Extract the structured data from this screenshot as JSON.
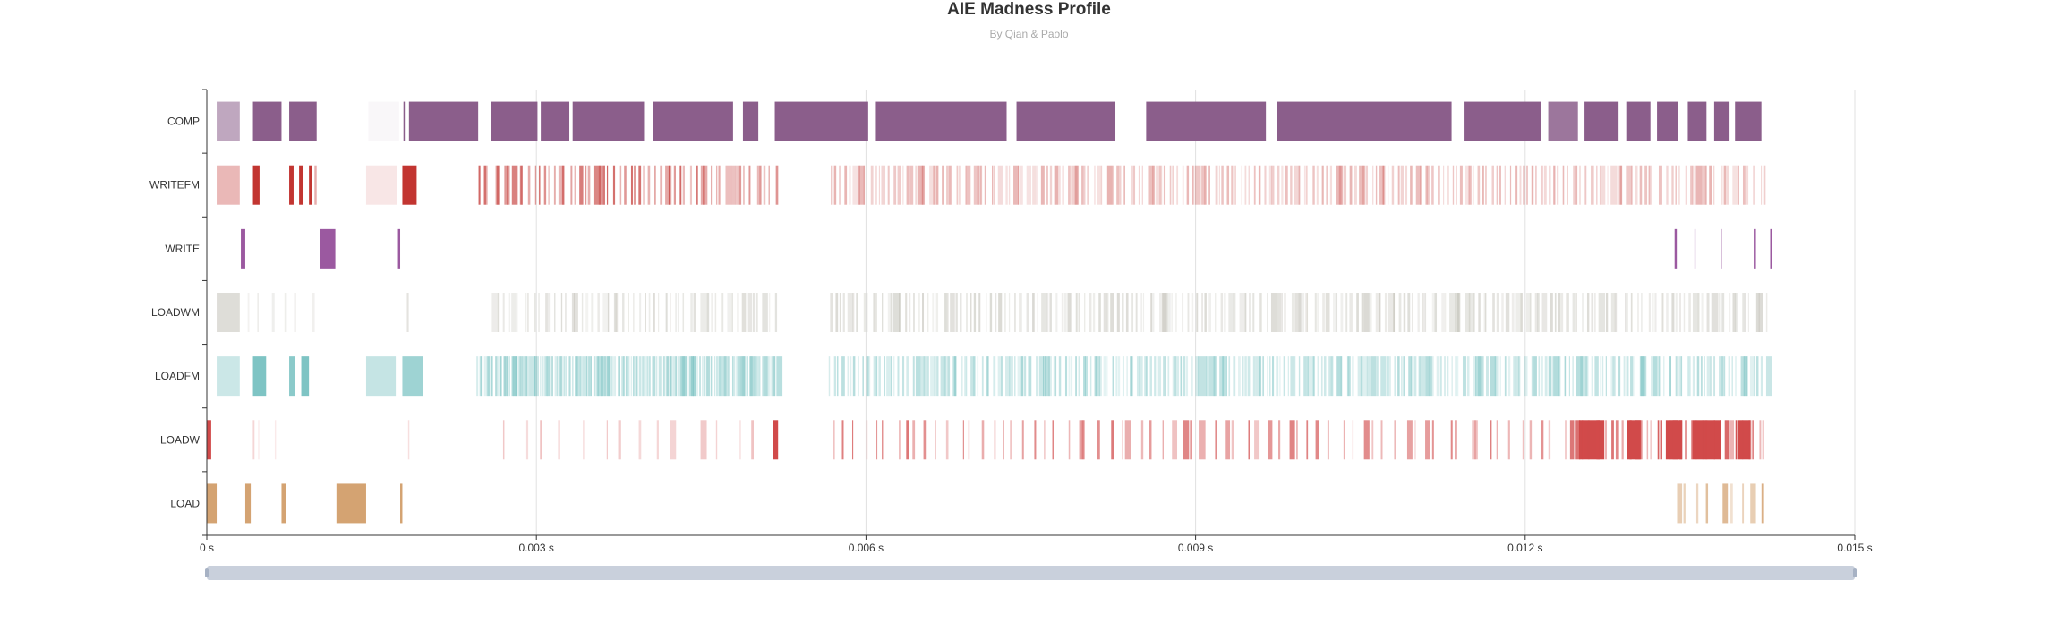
{
  "chart_data": {
    "type": "timeline",
    "title": "AIE Madness Profile",
    "subtitle": "By Qian & Paolo",
    "x_unit": "s",
    "xlim": [
      0,
      0.015
    ],
    "x_ticks": [
      {
        "value": 0,
        "label": "0 s"
      },
      {
        "value": 0.003,
        "label": "0.003 s"
      },
      {
        "value": 0.006,
        "label": "0.006 s"
      },
      {
        "value": 0.009,
        "label": "0.009 s"
      },
      {
        "value": 0.012,
        "label": "0.012 s"
      },
      {
        "value": 0.015,
        "label": "0.015 s"
      }
    ],
    "categories": [
      "COMP",
      "WRITEFM",
      "WRITE",
      "LOADWM",
      "LOADFM",
      "LOADW",
      "LOAD"
    ],
    "series": [
      {
        "name": "COMP",
        "color": "#8b5e8b",
        "intervals": [
          [
            9e-05,
            0.0003,
            0.55
          ],
          [
            0.00042,
            0.00068,
            1
          ],
          [
            0.00075,
            0.001,
            1
          ],
          [
            0.00147,
            0.00175,
            0.05
          ],
          [
            0.00179,
            0.0018,
            1
          ],
          [
            0.00184,
            0.00247,
            1
          ],
          [
            0.00259,
            0.00301,
            1
          ],
          [
            0.00304,
            0.0033,
            1
          ],
          [
            0.00333,
            0.00398,
            1
          ],
          [
            0.00406,
            0.00479,
            1
          ],
          [
            0.00488,
            0.00502,
            1
          ],
          [
            0.00517,
            0.00602,
            1
          ],
          [
            0.00609,
            0.00728,
            1
          ],
          [
            0.00737,
            0.00827,
            1
          ],
          [
            0.00855,
            0.00964,
            1
          ],
          [
            0.00974,
            0.01133,
            1
          ],
          [
            0.01144,
            0.01214,
            1
          ],
          [
            0.01221,
            0.01248,
            0.85
          ],
          [
            0.01254,
            0.01285,
            1
          ],
          [
            0.01292,
            0.01314,
            1
          ],
          [
            0.0132,
            0.01339,
            1
          ],
          [
            0.01348,
            0.01365,
            1
          ],
          [
            0.01372,
            0.01386,
            1
          ],
          [
            0.01391,
            0.01415,
            1
          ]
        ],
        "stripes": []
      },
      {
        "name": "WRITEFM",
        "color": "#c23531",
        "intervals": [
          [
            9e-05,
            0.0003,
            0.35
          ],
          [
            0.00042,
            0.00048,
            1
          ],
          [
            0.00075,
            0.00079,
            1
          ],
          [
            0.00084,
            0.00088,
            1
          ],
          [
            0.00093,
            0.00096,
            1
          ],
          [
            0.00098,
            0.001,
            0.4
          ],
          [
            0.00145,
            0.00173,
            0.12
          ],
          [
            0.00178,
            0.00191,
            1
          ]
        ],
        "stripes": [
          {
            "from": 0.00245,
            "to": 0.0052,
            "count": 60,
            "opacity": 0.75
          },
          {
            "from": 0.00565,
            "to": 0.0142,
            "count": 210,
            "opacity": 0.38
          }
        ]
      },
      {
        "name": "WRITE",
        "color": "#9b59a0",
        "intervals": [
          [
            0.00031,
            0.00035,
            1
          ],
          [
            0.00103,
            0.00117,
            1
          ],
          [
            0.00174,
            0.00176,
            1
          ],
          [
            0.01336,
            0.01338,
            1
          ],
          [
            0.01354,
            0.01355,
            0.4
          ],
          [
            0.01378,
            0.01379,
            0.5
          ],
          [
            0.01408,
            0.0141,
            1
          ],
          [
            0.01423,
            0.01425,
            1
          ]
        ],
        "stripes": []
      },
      {
        "name": "LOADWM",
        "color": "#b5b3a8",
        "intervals": [
          [
            9e-05,
            0.0003,
            0.45
          ]
        ],
        "stripes": [
          {
            "from": 0.00035,
            "to": 0.001,
            "count": 6,
            "opacity": 0.35
          },
          {
            "from": 0.00182,
            "to": 0.00184,
            "count": 1,
            "opacity": 0.45
          },
          {
            "from": 0.00258,
            "to": 0.00518,
            "count": 55,
            "opacity": 0.45
          },
          {
            "from": 0.00565,
            "to": 0.0142,
            "count": 200,
            "opacity": 0.5
          }
        ]
      },
      {
        "name": "LOADFM",
        "color": "#7ec4c4",
        "intervals": [
          [
            9e-05,
            0.0003,
            0.4
          ],
          [
            0.00042,
            0.00054,
            1
          ],
          [
            0.00075,
            0.0008,
            0.9
          ],
          [
            0.00086,
            0.00093,
            1
          ],
          [
            0.00145,
            0.00172,
            0.45
          ],
          [
            0.00178,
            0.00197,
            0.75
          ]
        ],
        "stripes": [
          {
            "from": 0.00245,
            "to": 0.0052,
            "count": 140,
            "opacity": 0.65
          },
          {
            "from": 0.00565,
            "to": 0.0142,
            "count": 260,
            "opacity": 0.6
          }
        ]
      },
      {
        "name": "LOADW",
        "color": "#d14a4a",
        "intervals": [
          [
            0.0,
            4e-05,
            1
          ],
          [
            0.00515,
            0.0052,
            1
          ],
          [
            0.01249,
            0.01272,
            1
          ],
          [
            0.01293,
            0.01305,
            1
          ],
          [
            0.01328,
            0.01343,
            1
          ],
          [
            0.01352,
            0.01378,
            1
          ],
          [
            0.01394,
            0.01405,
            1
          ]
        ],
        "stripes": [
          {
            "from": 0.00035,
            "to": 0.00068,
            "count": 3,
            "opacity": 0.3
          },
          {
            "from": 0.00182,
            "to": 0.00184,
            "count": 1,
            "opacity": 0.45
          },
          {
            "from": 0.00258,
            "to": 0.00512,
            "count": 14,
            "opacity": 0.35
          },
          {
            "from": 0.00565,
            "to": 0.0124,
            "count": 70,
            "opacity": 0.75
          },
          {
            "from": 0.0124,
            "to": 0.0142,
            "count": 35,
            "opacity": 1
          }
        ]
      },
      {
        "name": "LOAD",
        "color": "#d4a372",
        "intervals": [
          [
            0.0,
            9e-05,
            1
          ],
          [
            0.00035,
            0.0004,
            1
          ],
          [
            0.00068,
            0.00072,
            1
          ],
          [
            0.00118,
            0.00145,
            1
          ],
          [
            0.00176,
            0.00178,
            1
          ]
        ],
        "stripes": [
          {
            "from": 0.01332,
            "to": 0.01425,
            "count": 9,
            "opacity": 0.9
          }
        ]
      }
    ],
    "data_zoom": {
      "start": 0,
      "end": 0.015
    }
  }
}
